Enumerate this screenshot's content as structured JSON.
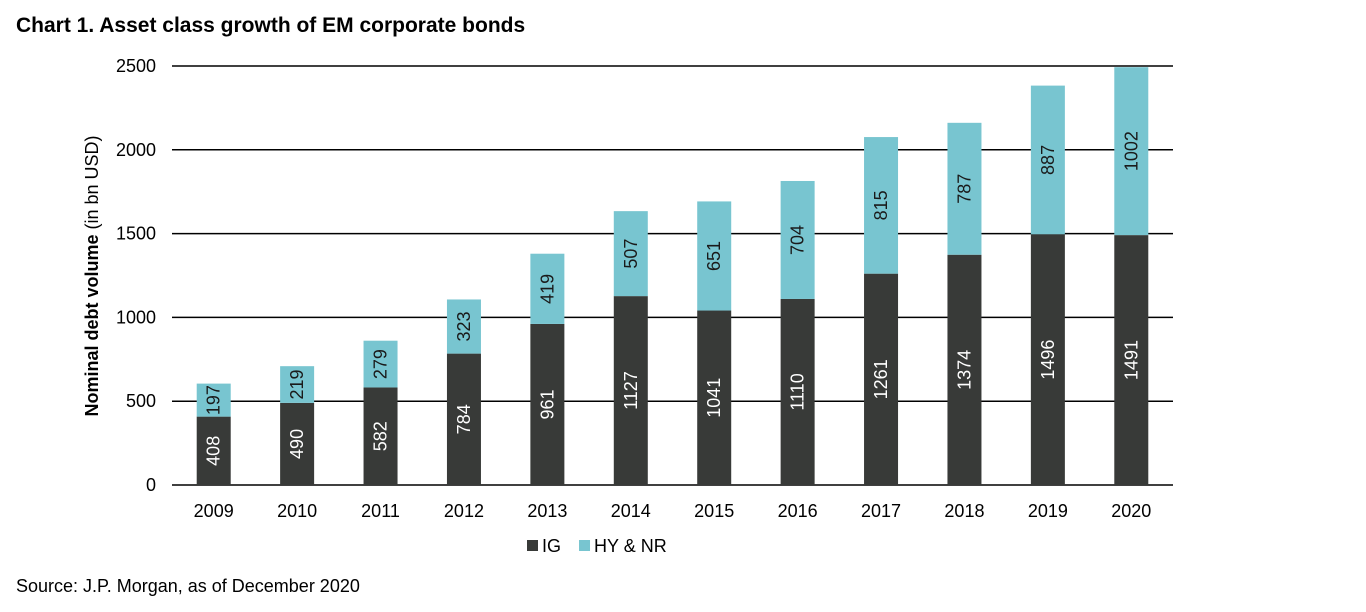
{
  "chart_data": {
    "type": "stacked_bar",
    "title": "Chart 1. Asset class growth of EM corporate bonds",
    "y_label": [
      "Nominal debt volume",
      "(in bn USD)"
    ],
    "source": "Source: J.P. Morgan, as of December 2020",
    "categories": [
      "2009",
      "2010",
      "2011",
      "2012",
      "2013",
      "2014",
      "2015",
      "2016",
      "2017",
      "2018",
      "2019",
      "2020"
    ],
    "series": [
      {
        "name": "IG",
        "color": "#383a38",
        "label_color": "#ffffff",
        "values": [
          408,
          490,
          582,
          784,
          961,
          1127,
          1041,
          1110,
          1261,
          1374,
          1496,
          1491
        ]
      },
      {
        "name": "HY & NR",
        "color": "#78c5d0",
        "label_color": "#1a1a1a",
        "values": [
          197,
          219,
          279,
          323,
          419,
          507,
          651,
          704,
          815,
          787,
          887,
          1002
        ]
      }
    ],
    "ylim": [
      0,
      2500
    ],
    "yticks": [
      0,
      500,
      1000,
      1500,
      2000,
      2500
    ],
    "grid": true,
    "legend": "bottom"
  }
}
